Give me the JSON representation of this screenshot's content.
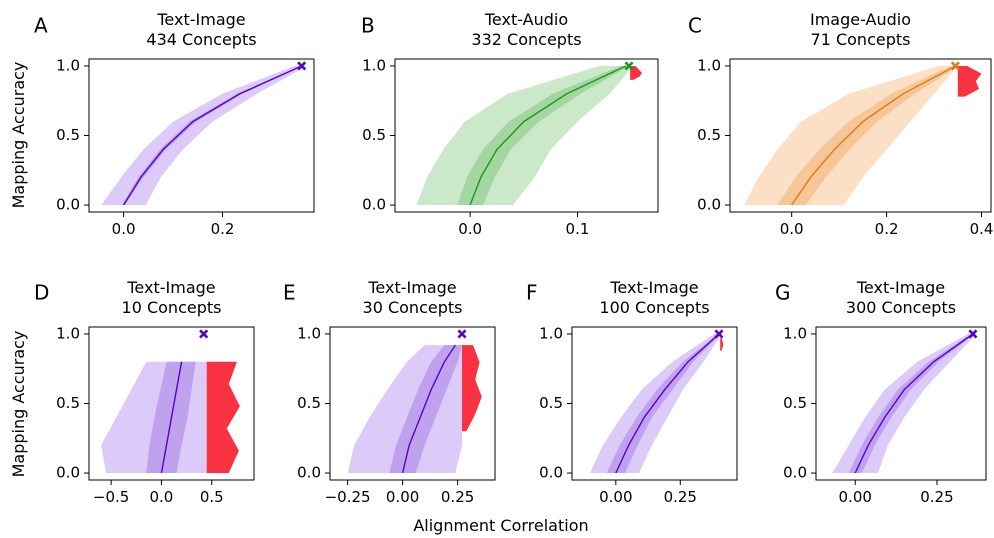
{
  "figure": {
    "ylabel": "Mapping Accuracy",
    "xlabel": "Alignment Correlation"
  },
  "colors": {
    "purple_line": "#5c00c8",
    "purple_light": "#dccbf8",
    "purple_mid": "#bfa2ee",
    "green_line": "#189a18",
    "green_light": "#cbe8c8",
    "green_mid": "#a3d6a0",
    "orange_line": "#e17a10",
    "orange_light": "#fbe0c6",
    "orange_mid": "#f6c699",
    "red": "#f83240"
  },
  "chart_data": [
    {
      "panel": "A",
      "type": "area",
      "title": [
        "Text-Image",
        "434 Concepts"
      ],
      "color": "purple",
      "xlim": [
        -0.07,
        0.385
      ],
      "ylim": [
        -0.05,
        1.05
      ],
      "xticks": [
        0.0,
        0.2
      ],
      "xticklabels": [
        "0.0",
        "0.2"
      ],
      "yticks": [
        0.0,
        0.5,
        1.0
      ],
      "yticklabels": [
        "0.0",
        "0.5",
        "1.0"
      ],
      "grid": false,
      "legend": "none",
      "y": [
        0,
        0.2,
        0.4,
        0.6,
        0.8,
        1.0
      ],
      "median_x": [
        0.0,
        0.035,
        0.08,
        0.14,
        0.235,
        0.36
      ],
      "inner_band": [
        [
          -0.003,
          0.003
        ],
        [
          0.03,
          0.04
        ],
        [
          0.074,
          0.086
        ],
        [
          0.133,
          0.147
        ],
        [
          0.23,
          0.24
        ],
        [
          0.357,
          0.363
        ]
      ],
      "outer_band": [
        [
          -0.045,
          0.045
        ],
        [
          -0.005,
          0.075
        ],
        [
          0.04,
          0.12
        ],
        [
          0.1,
          0.18
        ],
        [
          0.2,
          0.27
        ],
        [
          0.345,
          0.37
        ]
      ],
      "observed": {
        "x": 0.36,
        "y": 1.0
      },
      "exceedance": null
    },
    {
      "panel": "B",
      "type": "area",
      "title": [
        "Text-Audio",
        "332 Concepts"
      ],
      "color": "green",
      "xlim": [
        -0.07,
        0.175
      ],
      "ylim": [
        -0.05,
        1.05
      ],
      "xticks": [
        0.0,
        0.1
      ],
      "xticklabels": [
        "0.0",
        "0.1"
      ],
      "yticks": [
        0.0,
        0.5,
        1.0
      ],
      "yticklabels": [
        "0.0",
        "0.5",
        "1.0"
      ],
      "grid": false,
      "legend": "none",
      "y": [
        0,
        0.2,
        0.4,
        0.6,
        0.8,
        1.0
      ],
      "median_x": [
        0.0,
        0.01,
        0.025,
        0.05,
        0.09,
        0.145
      ],
      "inner_band": [
        [
          -0.012,
          0.012
        ],
        [
          -0.003,
          0.023
        ],
        [
          0.012,
          0.038
        ],
        [
          0.036,
          0.064
        ],
        [
          0.077,
          0.103
        ],
        [
          0.14,
          0.148
        ]
      ],
      "outer_band": [
        [
          -0.05,
          0.04
        ],
        [
          -0.04,
          0.06
        ],
        [
          -0.025,
          0.075
        ],
        [
          -0.005,
          0.1
        ],
        [
          0.035,
          0.13
        ],
        [
          0.12,
          0.152
        ]
      ],
      "observed": {
        "x": 0.148,
        "y": 1.0
      },
      "exceedance": {
        "x0": 0.149,
        "y_range": [
          0.9,
          1.0
        ],
        "widths": [
          0.003,
          0.009,
          0.011,
          0.008,
          0.005
        ]
      }
    },
    {
      "panel": "C",
      "type": "area",
      "title": [
        "Image-Audio",
        "71 Concepts"
      ],
      "color": "orange",
      "xlim": [
        -0.13,
        0.42
      ],
      "ylim": [
        -0.05,
        1.05
      ],
      "xticks": [
        0.0,
        0.2,
        0.4
      ],
      "xticklabels": [
        "0.0",
        "0.2",
        "0.4"
      ],
      "yticks": [
        0.0,
        0.5,
        1.0
      ],
      "yticklabels": [
        "0.0",
        "0.5",
        "1.0"
      ],
      "grid": false,
      "legend": "none",
      "y": [
        0,
        0.2,
        0.4,
        0.6,
        0.8,
        1.0
      ],
      "median_x": [
        0.0,
        0.04,
        0.09,
        0.15,
        0.235,
        0.345
      ],
      "inner_band": [
        [
          -0.03,
          0.03
        ],
        [
          0.008,
          0.072
        ],
        [
          0.058,
          0.122
        ],
        [
          0.12,
          0.18
        ],
        [
          0.21,
          0.26
        ],
        [
          0.335,
          0.35
        ]
      ],
      "outer_band": [
        [
          -0.1,
          0.11
        ],
        [
          -0.07,
          0.15
        ],
        [
          -0.03,
          0.2
        ],
        [
          0.02,
          0.25
        ],
        [
          0.12,
          0.3
        ],
        [
          0.31,
          0.35
        ]
      ],
      "observed": {
        "x": 0.345,
        "y": 1.0
      },
      "exceedance": {
        "x0": 0.35,
        "y_range": [
          0.78,
          1.0
        ],
        "widths": [
          0.015,
          0.045,
          0.038,
          0.05,
          0.02
        ]
      }
    },
    {
      "panel": "D",
      "type": "area",
      "title": [
        "Text-Image",
        "10 Concepts"
      ],
      "color": "purple",
      "xlim": [
        -0.72,
        0.92
      ],
      "ylim": [
        -0.05,
        1.05
      ],
      "xticks": [
        -0.5,
        0.0,
        0.5
      ],
      "xticklabels": [
        "−0.5",
        "0.0",
        "0.5"
      ],
      "yticks": [
        0.0,
        0.5,
        1.0
      ],
      "yticklabels": [
        "0.0",
        "0.5",
        "1.0"
      ],
      "grid": false,
      "legend": "none",
      "y": [
        0,
        0.2,
        0.4,
        0.6,
        0.8,
        0.8
      ],
      "median_x": [
        0.0,
        0.05,
        0.1,
        0.15,
        0.2,
        0.2
      ],
      "inner_band": [
        [
          -0.15,
          0.15
        ],
        [
          -0.12,
          0.2
        ],
        [
          -0.07,
          0.26
        ],
        [
          -0.01,
          0.3
        ],
        [
          0.05,
          0.34
        ],
        [
          0.05,
          0.34
        ]
      ],
      "outer_band": [
        [
          -0.55,
          0.45
        ],
        [
          -0.6,
          0.45
        ],
        [
          -0.45,
          0.45
        ],
        [
          -0.3,
          0.45
        ],
        [
          -0.15,
          0.45
        ],
        [
          -0.15,
          0.45
        ]
      ],
      "observed": {
        "x": 0.42,
        "y": 1.0
      },
      "exceedance": {
        "x0": 0.45,
        "y_range": [
          0.0,
          0.8
        ],
        "widths": [
          0.22,
          0.32,
          0.2,
          0.33,
          0.22,
          0.3
        ]
      }
    },
    {
      "panel": "E",
      "type": "area",
      "title": [
        "Text-Image",
        "30 Concepts"
      ],
      "color": "purple",
      "xlim": [
        -0.33,
        0.42
      ],
      "ylim": [
        -0.05,
        1.05
      ],
      "xticks": [
        -0.25,
        0.0,
        0.25
      ],
      "xticklabels": [
        "−0.25",
        "0.00",
        "0.25"
      ],
      "yticks": [
        0.0,
        0.5,
        1.0
      ],
      "yticklabels": [
        "0.0",
        "0.5",
        "1.0"
      ],
      "grid": false,
      "legend": "none",
      "y": [
        0,
        0.2,
        0.4,
        0.6,
        0.8,
        0.92
      ],
      "median_x": [
        0.0,
        0.03,
        0.08,
        0.13,
        0.19,
        0.24
      ],
      "inner_band": [
        [
          -0.06,
          0.06
        ],
        [
          -0.03,
          0.1
        ],
        [
          0.02,
          0.15
        ],
        [
          0.07,
          0.2
        ],
        [
          0.13,
          0.25
        ],
        [
          0.19,
          0.27
        ]
      ],
      "outer_band": [
        [
          -0.25,
          0.24
        ],
        [
          -0.22,
          0.27
        ],
        [
          -0.15,
          0.27
        ],
        [
          -0.07,
          0.27
        ],
        [
          0.02,
          0.27
        ],
        [
          0.1,
          0.27
        ]
      ],
      "observed": {
        "x": 0.27,
        "y": 1.0
      },
      "exceedance": {
        "x0": 0.27,
        "y_range": [
          0.3,
          0.92
        ],
        "widths": [
          0.02,
          0.06,
          0.09,
          0.06,
          0.08,
          0.05
        ]
      }
    },
    {
      "panel": "F",
      "type": "area",
      "title": [
        "Text-Image",
        "100 Concepts"
      ],
      "color": "purple",
      "xlim": [
        -0.17,
        0.47
      ],
      "ylim": [
        -0.05,
        1.05
      ],
      "xticks": [
        0.0,
        0.25
      ],
      "xticklabels": [
        "0.00",
        "0.25"
      ],
      "yticks": [
        0.0,
        0.5,
        1.0
      ],
      "yticklabels": [
        "0.0",
        "0.5",
        "1.0"
      ],
      "grid": false,
      "legend": "none",
      "y": [
        0,
        0.2,
        0.4,
        0.6,
        0.8,
        1.0
      ],
      "median_x": [
        0.0,
        0.05,
        0.11,
        0.19,
        0.28,
        0.4
      ],
      "inner_band": [
        [
          -0.035,
          0.035
        ],
        [
          0.015,
          0.085
        ],
        [
          0.08,
          0.14
        ],
        [
          0.16,
          0.22
        ],
        [
          0.26,
          0.3
        ],
        [
          0.395,
          0.405
        ]
      ],
      "outer_band": [
        [
          -0.1,
          0.09
        ],
        [
          -0.05,
          0.14
        ],
        [
          0.02,
          0.2
        ],
        [
          0.1,
          0.26
        ],
        [
          0.22,
          0.34
        ],
        [
          0.38,
          0.41
        ]
      ],
      "observed": {
        "x": 0.4,
        "y": 1.0
      },
      "exceedance": {
        "x0": 0.405,
        "y_range": [
          0.88,
          0.97
        ],
        "widths": [
          0.006,
          0.012,
          0.006
        ]
      }
    },
    {
      "panel": "G",
      "type": "area",
      "title": [
        "Text-Image",
        "300 Concepts"
      ],
      "color": "purple",
      "xlim": [
        -0.12,
        0.4
      ],
      "ylim": [
        -0.05,
        1.05
      ],
      "xticks": [
        0.0,
        0.25
      ],
      "xticklabels": [
        "0.00",
        "0.25"
      ],
      "yticks": [
        0.0,
        0.5,
        1.0
      ],
      "yticklabels": [
        "0.0",
        "0.5",
        "1.0"
      ],
      "grid": false,
      "legend": "none",
      "y": [
        0,
        0.2,
        0.4,
        0.6,
        0.8,
        1.0
      ],
      "median_x": [
        0.0,
        0.04,
        0.09,
        0.15,
        0.24,
        0.36
      ],
      "inner_band": [
        [
          -0.02,
          0.02
        ],
        [
          0.02,
          0.06
        ],
        [
          0.07,
          0.11
        ],
        [
          0.13,
          0.17
        ],
        [
          0.225,
          0.255
        ],
        [
          0.355,
          0.365
        ]
      ],
      "outer_band": [
        [
          -0.07,
          0.07
        ],
        [
          -0.02,
          0.1
        ],
        [
          0.03,
          0.15
        ],
        [
          0.09,
          0.21
        ],
        [
          0.19,
          0.29
        ],
        [
          0.345,
          0.37
        ]
      ],
      "observed": {
        "x": 0.36,
        "y": 1.0
      },
      "exceedance": null
    }
  ]
}
